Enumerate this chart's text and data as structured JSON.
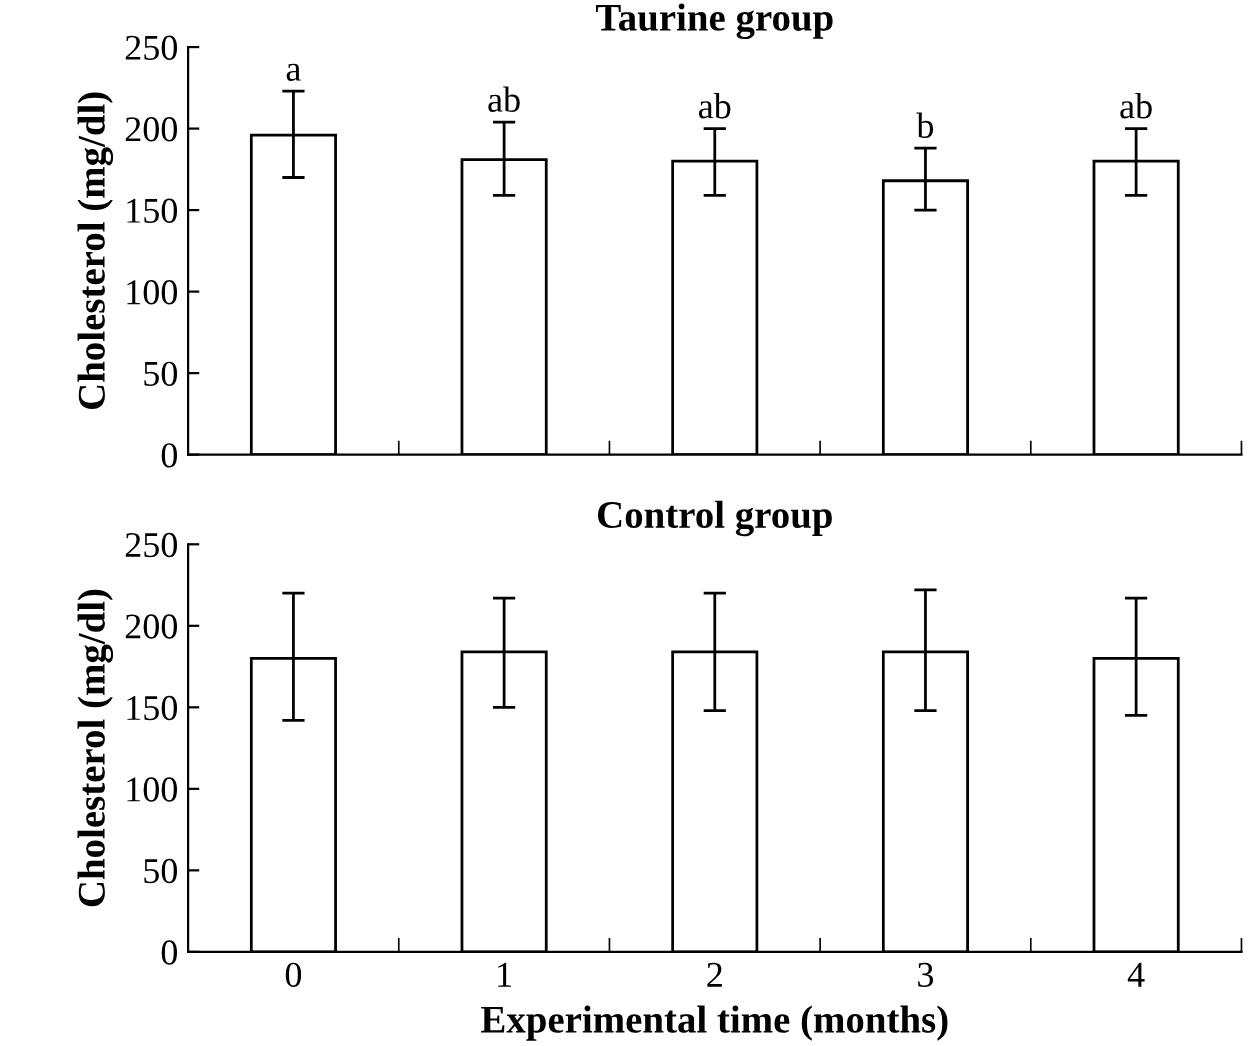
{
  "chart_data": [
    {
      "type": "bar",
      "title": "Taurine group",
      "ylabel": "Cholesterol (mg/dl)",
      "categories": [
        "0",
        "1",
        "2",
        "3",
        "4"
      ],
      "tick_labels": "y",
      "series": [
        {
          "color": "#ffffff",
          "values": [
            196,
            181,
            180,
            168,
            180
          ],
          "errors": [
            [
              170,
              223
            ],
            [
              159,
              204
            ],
            [
              159,
              200
            ],
            [
              150,
              188
            ],
            [
              159,
              200
            ]
          ]
        }
      ],
      "ylim": [
        0,
        250
      ],
      "yticks": [
        0,
        50,
        100,
        150,
        200,
        250
      ],
      "grid": false,
      "annotations": [
        {
          "text": "a",
          "x": "0",
          "y": 223
        },
        {
          "text": "ab",
          "x": "1",
          "y": 204
        },
        {
          "text": "ab",
          "x": "2",
          "y": 200
        },
        {
          "text": "b",
          "x": "3",
          "y": 188
        },
        {
          "text": "ab",
          "x": "4",
          "y": 200
        }
      ]
    },
    {
      "type": "bar",
      "title": "Control group",
      "ylabel": "Cholesterol (mg/dl)",
      "xlabel": "Experimental time (months)",
      "categories": [
        "0",
        "1",
        "2",
        "3",
        "4"
      ],
      "series": [
        {
          "color": "#ffffff",
          "values": [
            180,
            184,
            184,
            184,
            180
          ],
          "errors": [
            [
              142,
              220
            ],
            [
              150,
              217
            ],
            [
              148,
              220
            ],
            [
              148,
              222
            ],
            [
              145,
              217
            ]
          ]
        }
      ],
      "ylim": [
        0,
        250
      ],
      "yticks": [
        0,
        50,
        100,
        150,
        200,
        250
      ],
      "grid": false
    }
  ]
}
